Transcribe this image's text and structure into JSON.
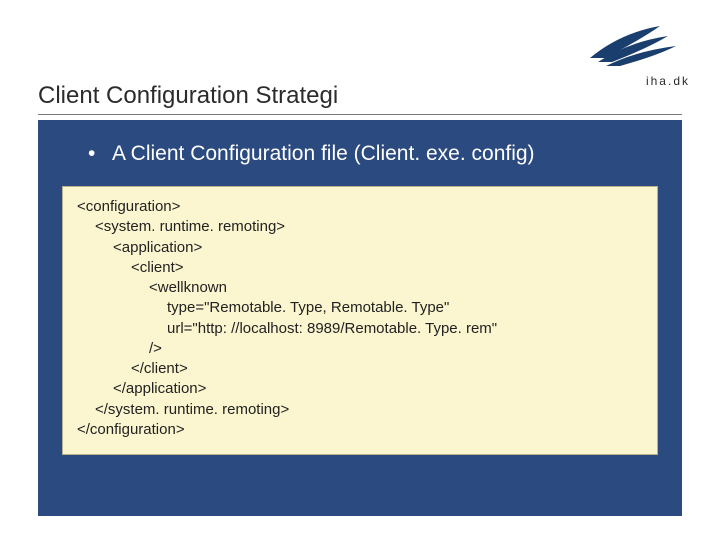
{
  "logo": {
    "brand_text": "iha.dk",
    "sail_color": "#1a3e6e",
    "text_color": "#2b2b2b"
  },
  "title": "Client Configuration Strategi",
  "bullet_text": "A Client Configuration file (Client. exe. config)",
  "code_lines": [
    {
      "indent": 0,
      "text": "<configuration>"
    },
    {
      "indent": 1,
      "text": "<system. runtime. remoting>"
    },
    {
      "indent": 2,
      "text": "<application>"
    },
    {
      "indent": 3,
      "text": "<client>"
    },
    {
      "indent": 4,
      "text": "<wellknown"
    },
    {
      "indent": 5,
      "text": "type=\"Remotable. Type, Remotable. Type\""
    },
    {
      "indent": 5,
      "text": "url=\"http: //localhost: 8989/Remotable. Type. rem\""
    },
    {
      "indent": 4,
      "text": "/>"
    },
    {
      "indent": 3,
      "text": "</client>"
    },
    {
      "indent": 2,
      "text": "</application>"
    },
    {
      "indent": 1,
      "text": "</system. runtime. remoting>"
    },
    {
      "indent": 0,
      "text": "</configuration>"
    }
  ],
  "colors": {
    "panel_bg": "#2b4a80",
    "code_bg": "#fbf6d0",
    "code_border": "#b9b18a",
    "title_underline": "#7a7a7a",
    "page_bg": "#ffffff"
  }
}
